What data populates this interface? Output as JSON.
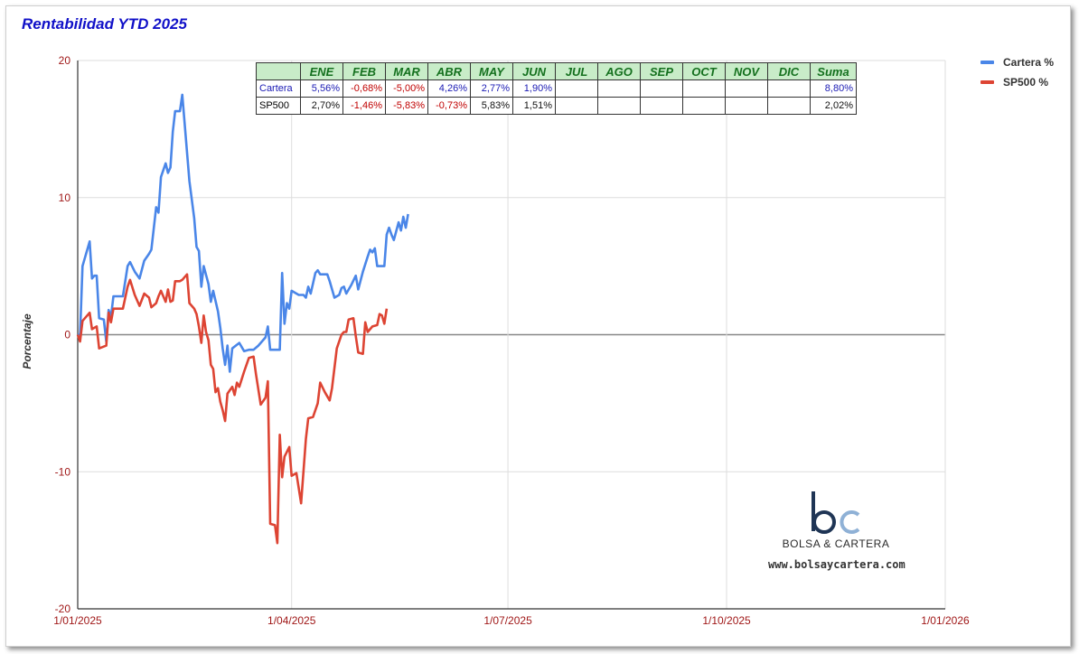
{
  "chart_data": {
    "type": "line",
    "title": "Rentabilidad YTD 2025",
    "ylabel": "Porcentaje",
    "xlabel": "",
    "ylim": [
      -20,
      20
    ],
    "yticks": [
      20,
      10,
      0,
      -10,
      -20
    ],
    "xticks": [
      "1/01/2025",
      "1/04/2025",
      "1/07/2025",
      "1/10/2025",
      "1/01/2026"
    ],
    "xrange_days": [
      0,
      365
    ],
    "xtick_days": [
      0,
      90,
      181,
      273,
      365
    ],
    "grid": true,
    "legend_position": "right",
    "series": [
      {
        "name": "Cartera %",
        "color": "#4a86e8",
        "points": [
          [
            0,
            0
          ],
          [
            1,
            0
          ],
          [
            2,
            5
          ],
          [
            5,
            6.8
          ],
          [
            6,
            4.1
          ],
          [
            7,
            4.3
          ],
          [
            8,
            4.3
          ],
          [
            9,
            1.2
          ],
          [
            11,
            1.1
          ],
          [
            12,
            -0.5
          ],
          [
            13,
            1.8
          ],
          [
            14,
            1.3
          ],
          [
            15,
            2.8
          ],
          [
            17,
            2.8
          ],
          [
            19,
            2.8
          ],
          [
            21,
            5.0
          ],
          [
            22,
            5.3
          ],
          [
            24,
            4.6
          ],
          [
            26,
            4.1
          ],
          [
            28,
            5.4
          ],
          [
            30,
            5.9
          ],
          [
            31,
            6.2
          ],
          [
            33,
            9.3
          ],
          [
            34,
            8.9
          ],
          [
            35,
            11.5
          ],
          [
            37,
            12.5
          ],
          [
            38,
            11.8
          ],
          [
            39,
            12.2
          ],
          [
            40,
            14.8
          ],
          [
            41,
            16.3
          ],
          [
            43,
            16.3
          ],
          [
            44,
            17.5
          ],
          [
            47,
            11.2
          ],
          [
            49,
            8.5
          ],
          [
            50,
            6.4
          ],
          [
            51,
            6.1
          ],
          [
            52,
            3.5
          ],
          [
            53,
            5.0
          ],
          [
            55,
            3.7
          ],
          [
            56,
            2.4
          ],
          [
            57,
            3.2
          ],
          [
            59,
            1.7
          ],
          [
            60,
            0.5
          ],
          [
            61,
            -1.0
          ],
          [
            62,
            -2.2
          ],
          [
            63,
            -0.8
          ],
          [
            64,
            -2.7
          ],
          [
            65,
            -1.0
          ],
          [
            68,
            -0.6
          ],
          [
            70,
            -1.2
          ],
          [
            72,
            -1.1
          ],
          [
            74,
            -1.1
          ],
          [
            76,
            -0.8
          ],
          [
            79,
            -0.2
          ],
          [
            80,
            0.6
          ],
          [
            81,
            -1.1
          ],
          [
            83,
            -1.1
          ],
          [
            84,
            -1.1
          ],
          [
            85,
            -1.1
          ],
          [
            86,
            4.5
          ],
          [
            87,
            0.8
          ],
          [
            88,
            2.3
          ],
          [
            89,
            1.9
          ],
          [
            90,
            3.2
          ],
          [
            93,
            2.9
          ],
          [
            95,
            2.9
          ],
          [
            96,
            2.7
          ],
          [
            97,
            3.5
          ],
          [
            98,
            3.0
          ],
          [
            100,
            4.5
          ],
          [
            101,
            4.7
          ],
          [
            102,
            4.4
          ],
          [
            104,
            4.4
          ],
          [
            105,
            4.4
          ],
          [
            106,
            3.9
          ],
          [
            108,
            2.7
          ],
          [
            110,
            2.9
          ],
          [
            111,
            3.4
          ],
          [
            112,
            3.5
          ],
          [
            113,
            3.0
          ],
          [
            115,
            3.6
          ],
          [
            117,
            4.3
          ],
          [
            118,
            3.3
          ],
          [
            120,
            4.6
          ],
          [
            122,
            5.7
          ],
          [
            123,
            6.2
          ],
          [
            124,
            6.0
          ],
          [
            125,
            6.3
          ],
          [
            126,
            5.0
          ],
          [
            129,
            5.0
          ],
          [
            130,
            7.3
          ],
          [
            131,
            7.8
          ],
          [
            132,
            7.3
          ],
          [
            133,
            6.9
          ],
          [
            135,
            8.2
          ],
          [
            136,
            7.6
          ],
          [
            137,
            8.6
          ],
          [
            138,
            7.8
          ],
          [
            139,
            8.8
          ]
        ]
      },
      {
        "name": "SP500 %",
        "color": "#dd4433",
        "points": [
          [
            0,
            0
          ],
          [
            1,
            -0.5
          ],
          [
            2,
            1.0
          ],
          [
            5,
            1.6
          ],
          [
            6,
            0.4
          ],
          [
            7,
            0.5
          ],
          [
            8,
            0.6
          ],
          [
            9,
            -1.0
          ],
          [
            12,
            -0.8
          ],
          [
            13,
            1.6
          ],
          [
            14,
            0.9
          ],
          [
            15,
            1.9
          ],
          [
            17,
            1.9
          ],
          [
            19,
            1.9
          ],
          [
            21,
            3.5
          ],
          [
            22,
            4.0
          ],
          [
            24,
            2.9
          ],
          [
            26,
            2.1
          ],
          [
            28,
            3.0
          ],
          [
            30,
            2.7
          ],
          [
            31,
            2.0
          ],
          [
            33,
            2.3
          ],
          [
            34,
            2.8
          ],
          [
            35,
            3.2
          ],
          [
            37,
            2.4
          ],
          [
            38,
            3.3
          ],
          [
            39,
            2.4
          ],
          [
            40,
            2.5
          ],
          [
            41,
            3.9
          ],
          [
            43,
            3.9
          ],
          [
            44,
            4.0
          ],
          [
            46,
            4.4
          ],
          [
            47,
            2.3
          ],
          [
            49,
            1.9
          ],
          [
            50,
            1.5
          ],
          [
            51,
            0.6
          ],
          [
            52,
            -0.6
          ],
          [
            53,
            1.4
          ],
          [
            54,
            0.2
          ],
          [
            55,
            -0.4
          ],
          [
            56,
            -2.2
          ],
          [
            57,
            -2.5
          ],
          [
            58,
            -4.2
          ],
          [
            59,
            -3.9
          ],
          [
            60,
            -4.9
          ],
          [
            61,
            -5.5
          ],
          [
            62,
            -6.3
          ],
          [
            63,
            -4.3
          ],
          [
            65,
            -3.8
          ],
          [
            66,
            -4.4
          ],
          [
            67,
            -3.5
          ],
          [
            68,
            -3.8
          ],
          [
            70,
            -2.7
          ],
          [
            72,
            -1.7
          ],
          [
            74,
            -1.6
          ],
          [
            75,
            -2.9
          ],
          [
            77,
            -5.1
          ],
          [
            79,
            -4.6
          ],
          [
            80,
            -3.4
          ],
          [
            81,
            -13.8
          ],
          [
            83,
            -13.9
          ],
          [
            84,
            -15.2
          ],
          [
            85,
            -7.3
          ],
          [
            86,
            -10.4
          ],
          [
            87,
            -8.9
          ],
          [
            89,
            -8.2
          ],
          [
            90,
            -10.3
          ],
          [
            92,
            -10.1
          ],
          [
            93,
            -11.2
          ],
          [
            94,
            -12.3
          ],
          [
            96,
            -7.6
          ],
          [
            97,
            -6.1
          ],
          [
            99,
            -6.0
          ],
          [
            100,
            -5.5
          ],
          [
            101,
            -5.0
          ],
          [
            102,
            -3.5
          ],
          [
            104,
            -4.2
          ],
          [
            106,
            -4.8
          ],
          [
            107,
            -3.9
          ],
          [
            109,
            -1.0
          ],
          [
            111,
            0.0
          ],
          [
            112,
            0.2
          ],
          [
            113,
            0.2
          ],
          [
            114,
            1.1
          ],
          [
            116,
            1.2
          ],
          [
            117,
            -0.1
          ],
          [
            118,
            -1.3
          ],
          [
            120,
            -1.4
          ],
          [
            121,
            0.9
          ],
          [
            122,
            0.2
          ],
          [
            124,
            0.6
          ],
          [
            126,
            0.7
          ],
          [
            127,
            1.5
          ],
          [
            128,
            1.4
          ],
          [
            129,
            0.8
          ],
          [
            130,
            1.9
          ]
        ]
      }
    ],
    "table": {
      "headers": [
        "",
        "ENE",
        "FEB",
        "MAR",
        "ABR",
        "MAY",
        "JUN",
        "JUL",
        "AGO",
        "SEP",
        "OCT",
        "NOV",
        "DIC",
        "Suma"
      ],
      "rows": [
        {
          "name": "Cartera",
          "cells": [
            "5,56%",
            "-0,68%",
            "-5,00%",
            "4,26%",
            "2,77%",
            "1,90%",
            "",
            "",
            "",
            "",
            "",
            "",
            "8,80%"
          ]
        },
        {
          "name": "SP500",
          "cells": [
            "2,70%",
            "-1,46%",
            "-5,83%",
            "-0,73%",
            "5,83%",
            "1,51%",
            "",
            "",
            "",
            "",
            "",
            "",
            "2,02%"
          ]
        }
      ]
    }
  },
  "logo": {
    "letters": "bc",
    "brand": "BOLSA & CARTERA",
    "site": "www.bolsaycartera.com"
  },
  "colors": {
    "title": "#1010c8",
    "axis_text": "#a01818",
    "zero_line": "#888888",
    "negative": "#c00000",
    "header_bg": "#c8ecc8",
    "header_text": "#14701e",
    "cartera_row_text": "#1a1ab4"
  }
}
